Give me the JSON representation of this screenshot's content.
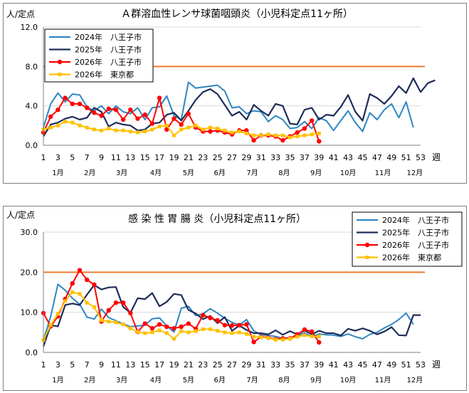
{
  "chart_data": [
    {
      "type": "line",
      "title": "Ａ群溶血性レンサ球菌咽頭炎（小児科定点11ヶ所）",
      "ylabel": "人/定点",
      "xlabel": "週",
      "ylim": [
        0,
        12
      ],
      "yticks": [
        "0.0",
        "4.0",
        "8.0",
        "12.0"
      ],
      "xticks": [
        1,
        3,
        5,
        7,
        9,
        11,
        13,
        15,
        17,
        19,
        21,
        23,
        25,
        27,
        29,
        31,
        33,
        35,
        37,
        39,
        41,
        43,
        45,
        47,
        49,
        51,
        53
      ],
      "months": [
        "1月",
        "2月",
        "3月",
        "4月",
        "5月",
        "6月",
        "7月",
        "8月",
        "9月",
        "10月",
        "11月",
        "12月"
      ],
      "threshold": 8.0,
      "threshold_color": "#ed7d31",
      "legend_position": "top-left",
      "series": [
        {
          "name": "2024年　八王子市",
          "color": "#2e86c1",
          "marker": "none",
          "values": [
            1.8,
            4.2,
            5.3,
            4.4,
            5.2,
            5.1,
            3.9,
            3.5,
            4.0,
            3.2,
            4.0,
            3.4,
            3.2,
            3.8,
            2.6,
            3.8,
            3.9,
            5.0,
            3.0,
            2.6,
            6.4,
            5.8,
            5.9,
            6.0,
            6.1,
            5.5,
            3.8,
            3.9,
            3.2,
            3.5,
            3.4,
            2.4,
            3.0,
            2.6,
            1.7,
            1.8,
            2.4,
            1.7,
            2.8,
            2.5,
            1.5,
            2.5,
            3.5,
            2.3,
            1.4,
            3.3,
            2.6,
            3.6,
            4.2,
            2.8,
            4.4,
            1.8
          ]
        },
        {
          "name": "2025年　八王子市",
          "color": "#1f2d5a",
          "marker": "none",
          "values": [
            0.9,
            2.1,
            2.3,
            2.7,
            2.9,
            2.6,
            2.8,
            3.8,
            3.4,
            1.9,
            2.3,
            2.1,
            2.0,
            1.5,
            1.6,
            2.2,
            2.3,
            3.1,
            3.3,
            2.5,
            3.5,
            4.6,
            5.4,
            5.7,
            5.2,
            4.1,
            3.0,
            3.4,
            2.6,
            4.1,
            3.5,
            3.0,
            4.2,
            4.0,
            2.2,
            2.1,
            3.6,
            3.8,
            2.6,
            3.1,
            3.0,
            3.9,
            5.1,
            3.4,
            2.5,
            5.2,
            4.8,
            4.2,
            5.0,
            6.0,
            5.3,
            6.8,
            5.4,
            6.3,
            6.6
          ]
        },
        {
          "name": "2026年　八王子市",
          "color": "#ff0000",
          "marker": "circle",
          "values": [
            1.3,
            2.9,
            3.6,
            4.8,
            4.2,
            4.2,
            3.8,
            3.3,
            3.0,
            3.7,
            3.6,
            2.6,
            3.6,
            2.7,
            3.1,
            2.2,
            4.8,
            1.6,
            2.7,
            2.1,
            3.2,
            1.8,
            1.4,
            1.4,
            1.5,
            1.3,
            1.1,
            1.5,
            1.5,
            0.5,
            1.0,
            1.0,
            0.9,
            0.5,
            0.9,
            1.3,
            1.7,
            2.5,
            0.4
          ]
        },
        {
          "name": "2026年　東京都",
          "color": "#ffc000",
          "marker": "square",
          "values": [
            1.6,
            1.8,
            2.0,
            2.4,
            2.3,
            2.0,
            1.8,
            1.6,
            1.5,
            1.7,
            1.5,
            1.5,
            1.4,
            1.3,
            1.4,
            1.6,
            1.9,
            2.0,
            1.0,
            1.6,
            1.8,
            2.0,
            1.6,
            1.8,
            1.7,
            1.5,
            1.3,
            1.4,
            1.2,
            1.0,
            1.0,
            1.1,
            1.0,
            1.0,
            0.8,
            0.9,
            1.0,
            1.1,
            1.2
          ]
        }
      ]
    },
    {
      "type": "line",
      "title": "感 染 性 胃 腸 炎（小児科定点11ヶ所）",
      "ylabel": "人/定点",
      "xlabel": "週",
      "ylim": [
        0,
        30
      ],
      "yticks": [
        "0.0",
        "10.0",
        "20.0",
        "30.0"
      ],
      "xticks": [
        1,
        3,
        5,
        7,
        9,
        11,
        13,
        15,
        17,
        19,
        21,
        23,
        25,
        27,
        29,
        31,
        33,
        35,
        37,
        39,
        41,
        43,
        45,
        47,
        49,
        51,
        53
      ],
      "months": [
        "1月",
        "2月",
        "3月",
        "4月",
        "5月",
        "6月",
        "7月",
        "8月",
        "9月",
        "10月",
        "11月",
        "12月"
      ],
      "threshold": 20.0,
      "threshold_color": "#ed7d31",
      "legend_position": "top-right",
      "series": [
        {
          "name": "2024年　八王子市",
          "color": "#2e86c1",
          "marker": "none",
          "values": [
            3.0,
            9.0,
            17.0,
            15.5,
            13.5,
            12.0,
            8.8,
            8.3,
            10.8,
            8.7,
            7.9,
            7.1,
            6.4,
            6.6,
            6.8,
            8.4,
            8.6,
            6.6,
            5.1,
            11.0,
            11.5,
            9.2,
            9.6,
            10.9,
            9.8,
            8.5,
            7.5,
            6.8,
            8.2,
            5.4,
            4.4,
            4.2,
            4.0,
            3.5,
            3.7,
            4.1,
            4.9,
            3.9,
            4.6,
            4.4,
            4.3,
            4.0,
            4.6,
            3.9,
            3.4,
            4.5,
            5.0,
            6.1,
            7.0,
            8.2,
            9.8,
            7.0
          ]
        },
        {
          "name": "2025年　八王子市",
          "color": "#1f2d5a",
          "marker": "none",
          "values": [
            1.5,
            6.8,
            6.5,
            11.8,
            12.2,
            11.8,
            14.4,
            16.8,
            15.7,
            16.2,
            16.3,
            11.3,
            9.9,
            13.5,
            13.3,
            14.8,
            11.5,
            12.6,
            14.6,
            14.3,
            10.6,
            9.7,
            8.3,
            9.1,
            7.3,
            8.8,
            5.4,
            6.7,
            5.6,
            4.8,
            4.8,
            4.5,
            5.5,
            4.4,
            5.3,
            4.5,
            5.5,
            4.5,
            5.4,
            4.8,
            4.8,
            4.2,
            5.9,
            5.4,
            6.0,
            5.4,
            4.5,
            5.2,
            6.3,
            4.3,
            4.2,
            9.3,
            9.3
          ]
        },
        {
          "name": "2026年　八王子市",
          "color": "#ff0000",
          "marker": "circle",
          "values": [
            9.8,
            6.5,
            9.0,
            13.3,
            17.2,
            20.5,
            18.1,
            16.9,
            7.7,
            10.5,
            12.4,
            12.4,
            9.8,
            5.1,
            7.2,
            6.0,
            7.0,
            6.4,
            6.0,
            6.4,
            7.2,
            5.9,
            9.3,
            8.6,
            8.0,
            6.8,
            6.7,
            6.8,
            7.0,
            2.6,
            3.9,
            3.7,
            3.3,
            3.5,
            3.5,
            4.5,
            5.7,
            5.2,
            2.5
          ]
        },
        {
          "name": "2026年　東京都",
          "color": "#ffc000",
          "marker": "square",
          "values": [
            3.1,
            6.8,
            9.6,
            12.8,
            15.0,
            14.6,
            12.4,
            11.3,
            8.0,
            7.7,
            7.5,
            7.0,
            6.0,
            5.1,
            4.8,
            5.0,
            5.5,
            4.8,
            3.4,
            5.3,
            5.0,
            5.3,
            5.8,
            5.8,
            5.4,
            5.0,
            4.8,
            5.0,
            4.6,
            3.9,
            3.8,
            3.6,
            3.2,
            3.2,
            3.4,
            3.9,
            4.3,
            4.0,
            4.0
          ]
        }
      ]
    }
  ]
}
